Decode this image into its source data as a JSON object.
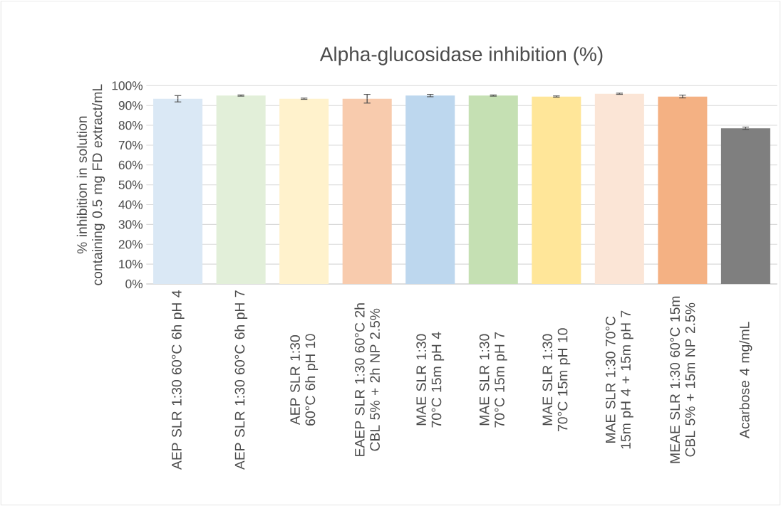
{
  "chart_data": {
    "type": "bar",
    "title": "Alpha-glucosidase inhibition (%)",
    "ylabel": "% inhibition in solution containing 0.5 mg FD extract/mL",
    "categories": [
      "AEP SLR 1:30 60°C 6h pH 4",
      "AEP SLR 1:30 60°C 6h pH 7",
      "AEP SLR 1:30 60°C 6h pH 10",
      "EAEP SLR 1:30 60°C 2h CBL 5% + 2h NP 2.5%",
      "MAE SLR 1:30 70°C 15m pH 4",
      "MAE SLR 1:30 70°C 15m pH 7",
      "MAE SLR 1:30 70°C 15m pH 10",
      "MAE SLR 1:30 70°C 15m pH 4 + 15m pH 7",
      "MEAE SLR 1:30 60°C 15m CBL 5% + 15m NP 2.5%",
      "Acarbose 4 mg/mL"
    ],
    "values": [
      93.4,
      95.0,
      93.4,
      93.4,
      95.0,
      95.0,
      94.5,
      95.9,
      94.5,
      78.5
    ],
    "errors": [
      1.6,
      0.3,
      0.3,
      2.2,
      0.6,
      0.3,
      0.3,
      0.3,
      0.7,
      0.6
    ],
    "colors": [
      "#dae8f5",
      "#e2efd9",
      "#fff2cc",
      "#f8cbad",
      "#bdd7ee",
      "#c5e0b3",
      "#ffe699",
      "#fbe5d6",
      "#f4b183",
      "#7f7f7f"
    ],
    "ylim": [
      0,
      100
    ],
    "yticks": [
      {
        "value": 0,
        "label": "0%"
      },
      {
        "value": 10,
        "label": "10%"
      },
      {
        "value": 20,
        "label": "20%"
      },
      {
        "value": 30,
        "label": "30%"
      },
      {
        "value": 40,
        "label": "40%"
      },
      {
        "value": 50,
        "label": "50%"
      },
      {
        "value": 60,
        "label": "60%"
      },
      {
        "value": 70,
        "label": "70%"
      },
      {
        "value": 80,
        "label": "80%"
      },
      {
        "value": 90,
        "label": "90%"
      },
      {
        "value": 100,
        "label": "100%"
      }
    ],
    "grid": "y"
  }
}
